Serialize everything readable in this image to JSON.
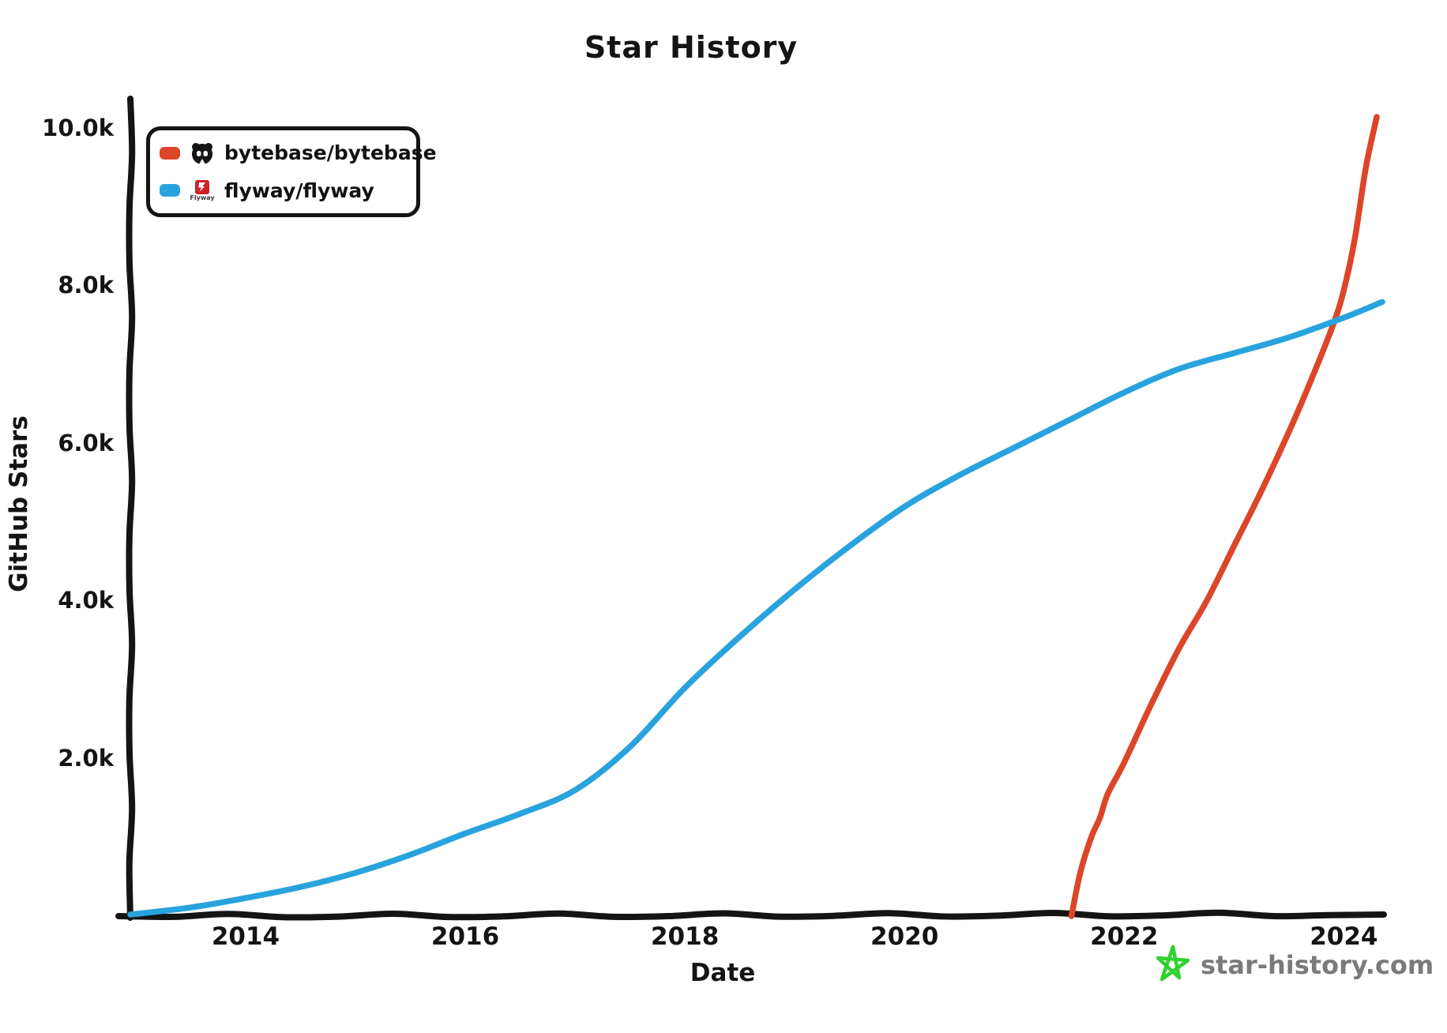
{
  "title": "Star History",
  "watermark": {
    "text": "star-history.com",
    "star_color": "#2fd22f",
    "text_color": "#7a7a7a"
  },
  "legend": {
    "flyway_logo_text": "Flyway",
    "flyway_logo_color": "#cc2229",
    "bytebase_avatar_color": "#151515"
  },
  "chart_data": {
    "type": "line",
    "title": "Star History",
    "xlabel": "Date",
    "ylabel": "GitHub Stars",
    "grid": false,
    "legend_position": "top-left",
    "x_unit": "decimal_year",
    "x_range": [
      2012.95,
      2024.35
    ],
    "y_range": [
      0,
      10400
    ],
    "x_ticks": [
      {
        "label": "2014",
        "value": 2014
      },
      {
        "label": "2016",
        "value": 2016
      },
      {
        "label": "2018",
        "value": 2018
      },
      {
        "label": "2020",
        "value": 2020
      },
      {
        "label": "2022",
        "value": 2022
      },
      {
        "label": "2024",
        "value": 2024
      }
    ],
    "y_ticks": [
      {
        "label": "2.0k",
        "value": 2000
      },
      {
        "label": "4.0k",
        "value": 4000
      },
      {
        "label": "6.0k",
        "value": 6000
      },
      {
        "label": "8.0k",
        "value": 8000
      },
      {
        "label": "10.0k",
        "value": 10000
      }
    ],
    "series": [
      {
        "name": "bytebase/bytebase",
        "color": "#dd4528",
        "data": [
          [
            2021.52,
            0
          ],
          [
            2021.6,
            550
          ],
          [
            2021.7,
            1000
          ],
          [
            2021.78,
            1250
          ],
          [
            2021.85,
            1550
          ],
          [
            2022.0,
            1950
          ],
          [
            2022.25,
            2700
          ],
          [
            2022.5,
            3400
          ],
          [
            2022.75,
            4000
          ],
          [
            2023.0,
            4700
          ],
          [
            2023.25,
            5400
          ],
          [
            2023.5,
            6150
          ],
          [
            2023.7,
            6800
          ],
          [
            2023.9,
            7500
          ],
          [
            2024.0,
            7950
          ],
          [
            2024.1,
            8600
          ],
          [
            2024.2,
            9500
          ],
          [
            2024.3,
            10150
          ]
        ]
      },
      {
        "name": "flyway/flyway",
        "color": "#28a3dd",
        "data": [
          [
            2012.95,
            20
          ],
          [
            2013.5,
            110
          ],
          [
            2014.0,
            230
          ],
          [
            2014.5,
            370
          ],
          [
            2015.0,
            550
          ],
          [
            2015.5,
            780
          ],
          [
            2016.0,
            1050
          ],
          [
            2016.5,
            1300
          ],
          [
            2017.0,
            1600
          ],
          [
            2017.5,
            2150
          ],
          [
            2018.0,
            2900
          ],
          [
            2018.5,
            3550
          ],
          [
            2019.0,
            4150
          ],
          [
            2019.5,
            4700
          ],
          [
            2020.0,
            5200
          ],
          [
            2020.5,
            5600
          ],
          [
            2021.0,
            5950
          ],
          [
            2021.5,
            6300
          ],
          [
            2022.0,
            6650
          ],
          [
            2022.5,
            6950
          ],
          [
            2023.0,
            7150
          ],
          [
            2023.5,
            7350
          ],
          [
            2024.0,
            7600
          ],
          [
            2024.35,
            7800
          ]
        ]
      }
    ]
  }
}
